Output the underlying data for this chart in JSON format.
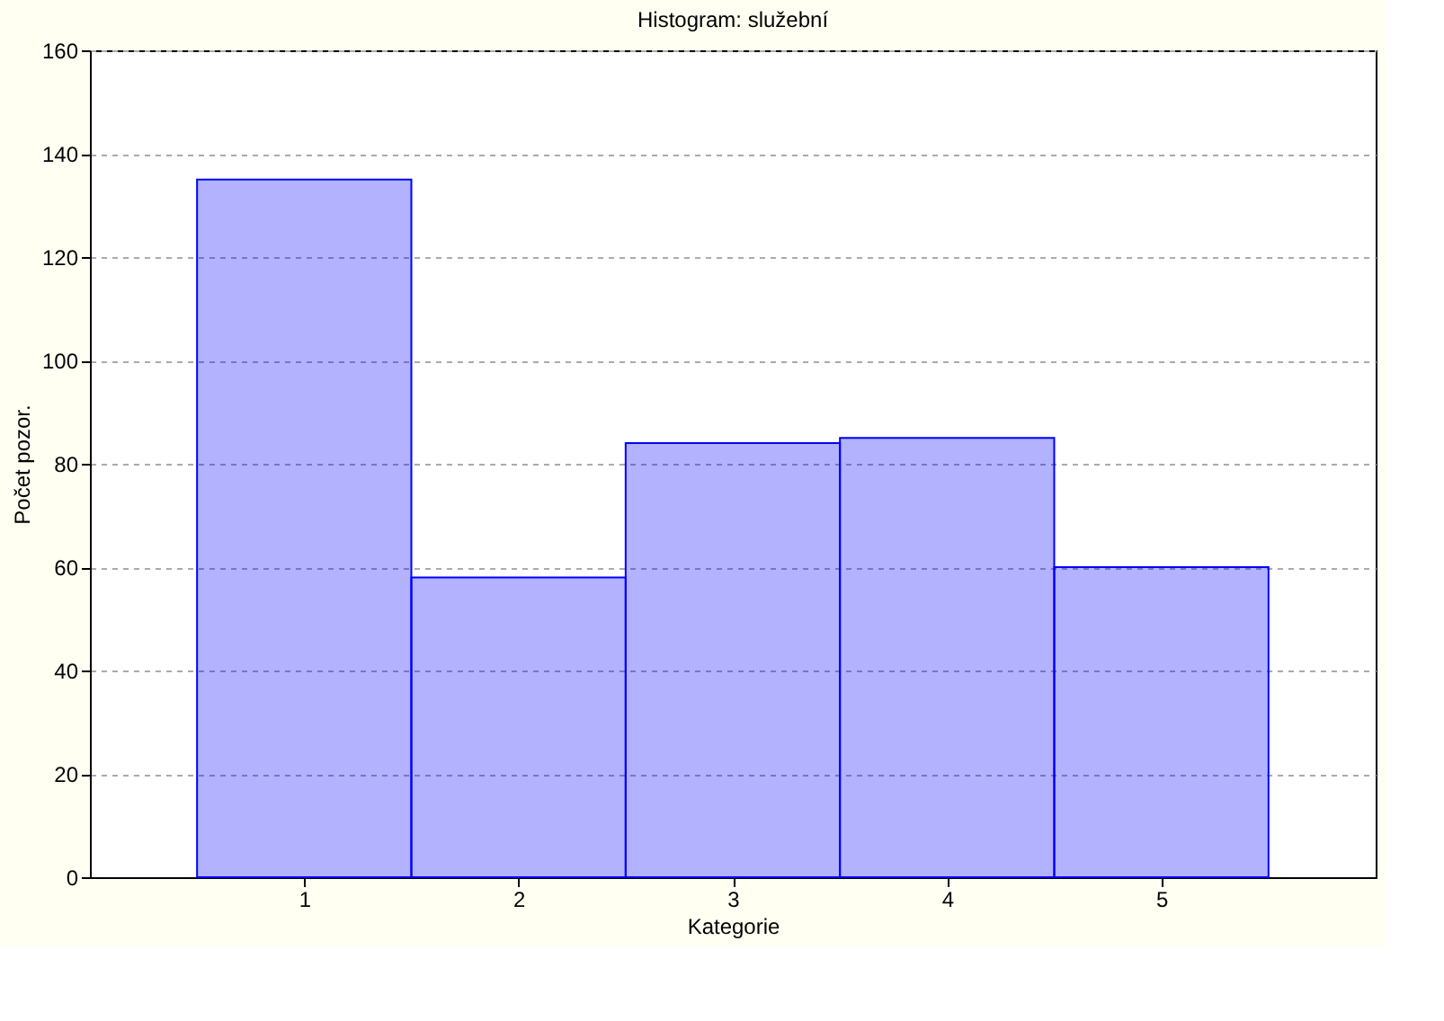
{
  "chart_data": {
    "type": "histogram",
    "title": "Histogram: služební",
    "xlabel": "Kategorie",
    "ylabel": "Počet pozor.",
    "bins": [
      0.5,
      1.5,
      2.5,
      3.5,
      4.5,
      5.5
    ],
    "values": [
      135,
      58,
      84,
      85,
      60
    ],
    "color": "#0000ff",
    "xlim": [
      0,
      6
    ],
    "xticks": [
      1,
      2,
      3,
      4,
      5
    ],
    "ylim": [
      0,
      160
    ],
    "yticks": [
      0,
      20,
      40,
      60,
      80,
      100,
      120,
      140,
      160
    ],
    "grid": "y"
  }
}
